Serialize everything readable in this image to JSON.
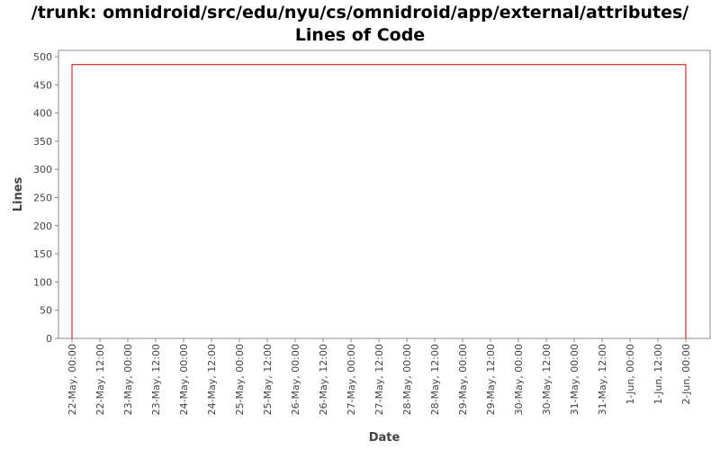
{
  "chart_data": {
    "type": "area",
    "title": "/trunk: omnidroid/src/edu/nyu/cs/omnidroid/app/external/attributes/",
    "subtitle": "Lines of Code",
    "xlabel": "Date",
    "ylabel": "Lines",
    "ylim": [
      0,
      500
    ],
    "yticks": [
      0,
      50,
      100,
      150,
      200,
      250,
      300,
      350,
      400,
      450,
      500
    ],
    "xticks": [
      "22-May, 00:00",
      "22-May, 12:00",
      "23-May, 00:00",
      "23-May, 12:00",
      "24-May, 00:00",
      "24-May, 12:00",
      "25-May, 00:00",
      "25-May, 12:00",
      "26-May, 00:00",
      "26-May, 12:00",
      "27-May, 00:00",
      "27-May, 12:00",
      "28-May, 00:00",
      "28-May, 12:00",
      "29-May, 00:00",
      "29-May, 12:00",
      "30-May, 00:00",
      "30-May, 12:00",
      "31-May, 00:00",
      "31-May, 12:00",
      "1-Jun, 00:00",
      "1-Jun, 12:00",
      "2-Jun, 00:00"
    ],
    "series": [
      {
        "color": "#cc0000",
        "points": [
          {
            "x": "22-May, 00:00",
            "y": 0
          },
          {
            "x": "22-May, 00:00",
            "y": 486
          },
          {
            "x": "2-Jun, 00:00",
            "y": 486
          },
          {
            "x": "2-Jun, 00:00",
            "y": 0
          }
        ]
      }
    ],
    "grid": false,
    "legend": "none"
  }
}
